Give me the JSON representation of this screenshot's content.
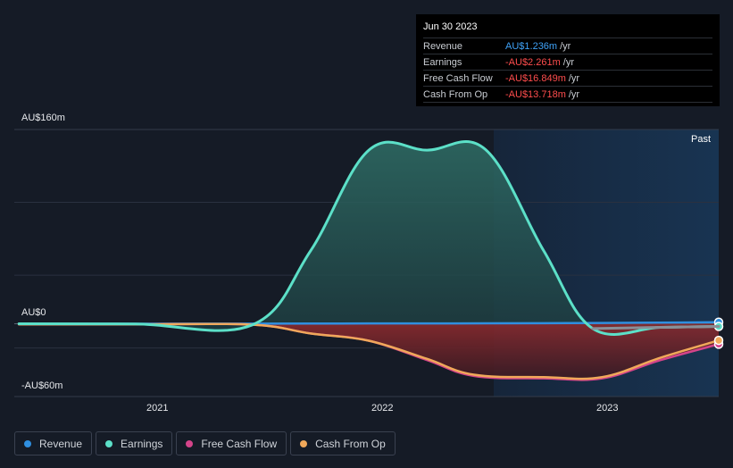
{
  "tooltip": {
    "date": "Jun 30 2023",
    "rows": [
      {
        "label": "Revenue",
        "value": "AU$1.236m",
        "unit": "/yr",
        "color": "#3fa2f7"
      },
      {
        "label": "Earnings",
        "value": "-AU$2.261m",
        "unit": "/yr",
        "color": "#ff4d4d"
      },
      {
        "label": "Free Cash Flow",
        "value": "-AU$16.849m",
        "unit": "/yr",
        "color": "#ff4d4d"
      },
      {
        "label": "Cash From Op",
        "value": "-AU$13.718m",
        "unit": "/yr",
        "color": "#ff4d4d"
      }
    ]
  },
  "past_label": "Past",
  "legend": [
    {
      "label": "Revenue",
      "color": "#2f8fe0"
    },
    {
      "label": "Earnings",
      "color": "#5ce0c8"
    },
    {
      "label": "Free Cash Flow",
      "color": "#d4448a"
    },
    {
      "label": "Cash From Op",
      "color": "#f0a85a"
    }
  ],
  "chart_data": {
    "type": "area",
    "y_tick_labels": [
      "AU$160m",
      "AU$0",
      "-AU$60m"
    ],
    "x_tick_labels": [
      "2021",
      "2022",
      "2023"
    ],
    "ylim": [
      -60,
      160
    ],
    "xlim": [
      2020.48,
      2023.5
    ],
    "grid": true,
    "series": [
      {
        "name": "Revenue",
        "color": "#2f8fe0",
        "points": [
          [
            2020.5,
            0
          ],
          [
            2021.0,
            0
          ],
          [
            2021.5,
            0.1
          ],
          [
            2022.0,
            0.2
          ],
          [
            2022.5,
            0.3
          ],
          [
            2023.0,
            0.6
          ],
          [
            2023.5,
            1.236
          ]
        ]
      },
      {
        "name": "Earnings",
        "color": "#5ce0c8",
        "points": [
          [
            2020.5,
            0
          ],
          [
            2021.0,
            -0.2
          ],
          [
            2021.5,
            -1
          ],
          [
            2021.75,
            60
          ],
          [
            2022.0,
            143
          ],
          [
            2022.25,
            143
          ],
          [
            2022.5,
            143.5
          ],
          [
            2022.75,
            60
          ],
          [
            2022.96,
            -4
          ],
          [
            2023.25,
            -3
          ],
          [
            2023.5,
            -2.261
          ]
        ]
      },
      {
        "name": "Free Cash Flow",
        "color": "#d4448a",
        "points": [
          [
            2020.5,
            -0.5
          ],
          [
            2021.0,
            -0.5
          ],
          [
            2021.5,
            -0.8
          ],
          [
            2021.75,
            -8
          ],
          [
            2022.0,
            -14
          ],
          [
            2022.25,
            -30
          ],
          [
            2022.45,
            -43
          ],
          [
            2022.75,
            -45
          ],
          [
            2023.0,
            -45
          ],
          [
            2023.25,
            -30
          ],
          [
            2023.5,
            -16.849
          ]
        ]
      },
      {
        "name": "Cash From Op",
        "color": "#f0a85a",
        "points": [
          [
            2020.5,
            -0.5
          ],
          [
            2021.0,
            -0.5
          ],
          [
            2021.5,
            -0.8
          ],
          [
            2021.75,
            -8
          ],
          [
            2022.0,
            -14
          ],
          [
            2022.25,
            -29
          ],
          [
            2022.45,
            -42
          ],
          [
            2022.75,
            -44
          ],
          [
            2023.0,
            -44
          ],
          [
            2023.25,
            -28
          ],
          [
            2023.5,
            -13.718
          ]
        ]
      }
    ]
  }
}
